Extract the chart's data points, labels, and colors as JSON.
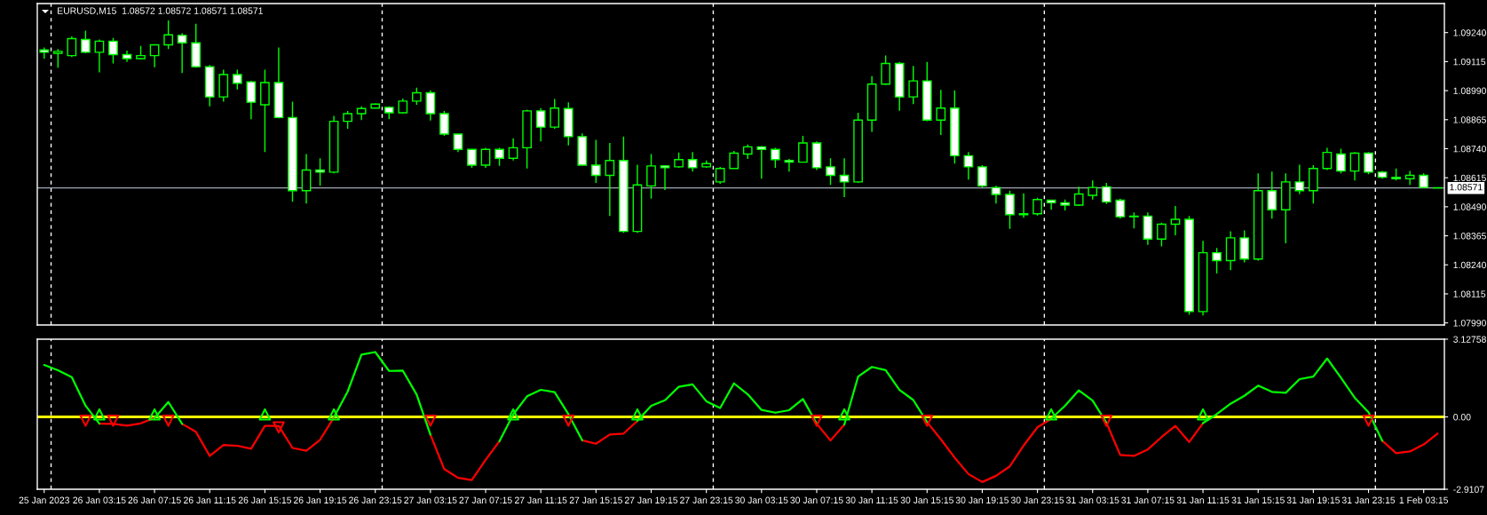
{
  "chart_data": [
    {
      "type": "candlestick",
      "title": "EURUSD,M15  1.08572 1.08572 1.08571 1.08571",
      "color": "#00ff00",
      "categories": [
        null,
        null,
        null,
        null,
        null,
        null,
        null,
        null,
        null,
        null,
        null,
        null,
        null,
        null,
        null,
        null,
        null,
        null,
        null,
        null,
        null,
        null,
        null,
        null,
        null,
        null,
        null,
        null,
        null,
        null,
        null,
        null,
        null,
        null,
        null,
        null,
        null,
        null,
        null,
        null,
        null,
        null,
        null,
        null,
        null,
        null,
        null,
        null,
        null,
        null,
        null,
        null,
        null,
        null,
        null,
        null,
        null,
        null,
        null,
        null,
        null,
        null,
        null,
        null,
        null,
        null,
        null,
        null,
        null,
        null,
        null,
        null,
        null,
        null,
        null,
        null,
        null,
        null,
        null,
        null,
        null,
        null,
        null,
        null,
        null,
        null,
        null,
        null,
        null,
        null,
        null,
        null,
        null,
        null,
        null,
        null,
        null,
        null,
        null,
        null,
        null,
        null
      ],
      "ohlc": [
        [
          1.09165,
          1.09176,
          1.09128,
          1.09155
        ],
        [
          1.09151,
          1.09169,
          1.09089,
          1.09159
        ],
        [
          1.09141,
          1.09224,
          1.09135,
          1.09214
        ],
        [
          1.0921,
          1.09248,
          1.09151,
          1.09155
        ],
        [
          1.09155,
          1.0921,
          1.09069,
          1.09203
        ],
        [
          1.09203,
          1.09217,
          1.09107,
          1.09145
        ],
        [
          1.09145,
          1.09162,
          1.09114,
          1.09128
        ],
        [
          1.09128,
          1.09182,
          1.09124,
          1.09141
        ],
        [
          1.09141,
          1.09189,
          1.09091,
          1.09187
        ],
        [
          1.09187,
          1.09292,
          1.09169,
          1.0923
        ],
        [
          1.09228,
          1.09237,
          1.09066,
          1.09196
        ],
        [
          1.09196,
          1.09278,
          1.09089,
          1.09093
        ],
        [
          1.09093,
          1.091,
          1.08922,
          1.08963
        ],
        [
          1.08963,
          1.0908,
          1.08943,
          1.09059
        ],
        [
          1.09059,
          1.0908,
          1.08995,
          1.09022
        ],
        [
          1.09028,
          1.09032,
          1.08867,
          1.0894
        ],
        [
          1.08929,
          1.0908,
          1.08726,
          1.09025
        ],
        [
          1.09025,
          1.09176,
          1.08871,
          1.08874
        ],
        [
          1.08874,
          1.08943,
          1.08511,
          1.08559
        ],
        [
          1.08559,
          1.08717,
          1.08504,
          1.08648
        ],
        [
          1.08648,
          1.08699,
          1.0858,
          1.08639
        ],
        [
          1.08639,
          1.08881,
          1.08634,
          1.08858
        ],
        [
          1.08858,
          1.08902,
          1.08826,
          1.08891
        ],
        [
          1.08891,
          1.08922,
          1.08863,
          1.08913
        ],
        [
          1.08915,
          1.08936,
          1.08913,
          1.08932
        ],
        [
          1.08918,
          1.08922,
          1.08867,
          1.08895
        ],
        [
          1.08895,
          1.08956,
          1.08891,
          1.08945
        ],
        [
          1.08945,
          1.09003,
          1.08929,
          1.08981
        ],
        [
          1.08981,
          1.08991,
          1.08861,
          1.08891
        ],
        [
          1.08891,
          1.08902,
          1.08795,
          1.08803
        ],
        [
          1.08803,
          1.08806,
          1.08726,
          1.08737
        ],
        [
          1.08737,
          1.0874,
          1.08658,
          1.08669
        ],
        [
          1.08669,
          1.08744,
          1.08658,
          1.08737
        ],
        [
          1.08737,
          1.08744,
          1.08666,
          1.08699
        ],
        [
          1.08699,
          1.08785,
          1.08689,
          1.08744
        ],
        [
          1.08744,
          1.08908,
          1.08655,
          1.08903
        ],
        [
          1.08903,
          1.08915,
          1.08771,
          1.08833
        ],
        [
          1.08833,
          1.08954,
          1.08826,
          1.08915
        ],
        [
          1.08913,
          1.0894,
          1.08754,
          1.08792
        ],
        [
          1.08792,
          1.08806,
          1.08666,
          1.08669
        ],
        [
          1.08669,
          1.08778,
          1.08593,
          1.08625
        ],
        [
          1.08625,
          1.08765,
          1.0845,
          1.08689
        ],
        [
          1.08689,
          1.08792,
          1.08378,
          1.08384
        ],
        [
          1.08384,
          1.08671,
          1.08378,
          1.08584
        ],
        [
          1.0858,
          1.08717,
          1.08525,
          1.08666
        ],
        [
          1.08666,
          1.08669,
          1.08562,
          1.08658
        ],
        [
          1.08662,
          1.08724,
          1.08658,
          1.08693
        ],
        [
          1.08693,
          1.08726,
          1.08641,
          1.08658
        ],
        [
          1.08662,
          1.08689,
          1.08658,
          1.08676
        ],
        [
          1.08597,
          1.08662,
          1.08589,
          1.08655
        ],
        [
          1.08655,
          1.0873,
          1.08652,
          1.08721
        ],
        [
          1.08717,
          1.08758,
          1.08696,
          1.08748
        ],
        [
          1.08748,
          1.08751,
          1.08611,
          1.08737
        ],
        [
          1.08737,
          1.08744,
          1.08658,
          1.08693
        ],
        [
          1.08689,
          1.08696,
          1.08641,
          1.08682
        ],
        [
          1.08682,
          1.08795,
          1.0868,
          1.08765
        ],
        [
          1.08765,
          1.08771,
          1.08648,
          1.08658
        ],
        [
          1.08662,
          1.08699,
          1.08584,
          1.08625
        ],
        [
          1.08625,
          1.08699,
          1.08532,
          1.08597
        ],
        [
          1.08597,
          1.08895,
          1.08593,
          1.08863
        ],
        [
          1.08863,
          1.09052,
          1.08813,
          1.09018
        ],
        [
          1.09018,
          1.09141,
          1.09014,
          1.09107
        ],
        [
          1.09107,
          1.09114,
          1.08903,
          1.08963
        ],
        [
          1.08963,
          1.09096,
          1.08932,
          1.09032
        ],
        [
          1.09032,
          1.09114,
          1.08858,
          1.08863
        ],
        [
          1.08863,
          1.08993,
          1.08799,
          1.08915
        ],
        [
          1.08915,
          1.08991,
          1.08676,
          1.0871
        ],
        [
          1.0871,
          1.08726,
          1.08607,
          1.08662
        ],
        [
          1.08662,
          1.08669,
          1.08573,
          1.0858
        ],
        [
          1.08573,
          1.0858,
          1.08504,
          1.08543
        ],
        [
          1.08543,
          1.08559,
          1.08395,
          1.08456
        ],
        [
          1.08456,
          1.08548,
          1.08443,
          1.0846
        ],
        [
          1.0846,
          1.08529,
          1.08452,
          1.08521
        ],
        [
          1.08518,
          1.08521,
          1.08477,
          1.08507
        ],
        [
          1.08507,
          1.08521,
          1.08474,
          1.08497
        ],
        [
          1.08497,
          1.08576,
          1.08493,
          1.08545
        ],
        [
          1.08539,
          1.08603,
          1.08521,
          1.08573
        ],
        [
          1.08576,
          1.08593,
          1.08502,
          1.08511
        ],
        [
          1.08518,
          1.08525,
          1.08439,
          1.08447
        ],
        [
          1.08447,
          1.08466,
          1.08397,
          1.0845
        ],
        [
          1.0845,
          1.08466,
          1.08326,
          1.08351
        ],
        [
          1.08351,
          1.08422,
          1.08319,
          1.08415
        ],
        [
          1.08415,
          1.08493,
          1.08367,
          1.08436
        ],
        [
          1.08436,
          1.0845,
          1.08025,
          1.08039
        ],
        [
          1.08039,
          1.08343,
          1.08022,
          1.08292
        ],
        [
          1.08292,
          1.08313,
          1.08203,
          1.08258
        ],
        [
          1.08258,
          1.08384,
          1.08217,
          1.08356
        ],
        [
          1.08356,
          1.08388,
          1.08251,
          1.08265
        ],
        [
          1.08265,
          1.08634,
          1.08258,
          1.08559
        ],
        [
          1.08559,
          1.08641,
          1.08439,
          1.08477
        ],
        [
          1.08477,
          1.08634,
          1.08333,
          1.08597
        ],
        [
          1.08597,
          1.08671,
          1.08545,
          1.08559
        ],
        [
          1.08559,
          1.08669,
          1.08504,
          1.08655
        ],
        [
          1.08655,
          1.08744,
          1.08648,
          1.08724
        ],
        [
          1.08717,
          1.0874,
          1.08634,
          1.08644
        ],
        [
          1.08644,
          1.08726,
          1.08603,
          1.08721
        ],
        [
          1.08721,
          1.08726,
          1.0863,
          1.08639
        ],
        [
          1.08639,
          1.08644,
          1.08611,
          1.08617
        ],
        [
          1.08617,
          1.08655,
          1.08603,
          1.08611
        ],
        [
          1.08611,
          1.08644,
          1.08584,
          1.08625
        ],
        [
          1.08625,
          1.08634,
          1.0857,
          1.08573
        ],
        [
          1.08572,
          1.08572,
          1.08571,
          1.08571
        ]
      ],
      "ylim": [
        1.07981,
        1.09365
      ],
      "yticks": [
        {
          "value": 1.0924,
          "label": "1.09240"
        },
        {
          "value": 1.09115,
          "label": "1.09115"
        },
        {
          "value": 1.0899,
          "label": "1.08990"
        },
        {
          "value": 1.08865,
          "label": "1.08865"
        },
        {
          "value": 1.0874,
          "label": "1.08740"
        },
        {
          "value": 1.08615,
          "label": "1.08615"
        },
        {
          "value": 1.0849,
          "label": "1.08490"
        },
        {
          "value": 1.08365,
          "label": "1.08365"
        },
        {
          "value": 1.0824,
          "label": "1.08240"
        },
        {
          "value": 1.08115,
          "label": "1.08115"
        },
        {
          "value": 1.0799,
          "label": "1.07990"
        }
      ],
      "tick_labels": "y",
      "ref_lines": [
        {
          "axis": "y",
          "value": 1.08571,
          "label": "1.08571",
          "color": "#a0a8b4"
        }
      ]
    },
    {
      "type": "line",
      "categories": [
        "25 Jan 2023",
        null,
        null,
        null,
        "26 Jan 03:15",
        null,
        null,
        null,
        "26 Jan 07:15",
        null,
        null,
        null,
        "26 Jan 11:15",
        null,
        null,
        null,
        "26 Jan 15:15",
        null,
        null,
        null,
        "26 Jan 19:15",
        null,
        null,
        null,
        "26 Jan 23:15",
        null,
        null,
        null,
        "27 Jan 03:15",
        null,
        null,
        null,
        "27 Jan 07:15",
        null,
        null,
        null,
        "27 Jan 11:15",
        null,
        null,
        null,
        "27 Jan 15:15",
        null,
        null,
        null,
        "27 Jan 19:15",
        null,
        null,
        null,
        "27 Jan 23:15",
        null,
        null,
        null,
        "30 Jan 03:15",
        null,
        null,
        null,
        "30 Jan 07:15",
        null,
        null,
        null,
        "30 Jan 11:15",
        null,
        null,
        null,
        "30 Jan 15:15",
        null,
        null,
        null,
        "30 Jan 19:15",
        null,
        null,
        null,
        "30 Jan 23:15",
        null,
        null,
        null,
        "31 Jan 03:15",
        null,
        null,
        null,
        "31 Jan 07:15",
        null,
        null,
        null,
        "31 Jan 11:15",
        null,
        null,
        null,
        "31 Jan 15:15",
        null,
        null,
        null,
        "31 Jan 19:15",
        null,
        null,
        null,
        "31 Jan 23:15",
        null,
        null,
        null,
        "1 Feb 03:15",
        null
      ],
      "series": [
        {
          "color": "#ff0000",
          "values": [
            null,
            null,
            null,
            null,
            -0.27,
            -0.28,
            -0.35,
            -0.26,
            -0.04,
            null,
            -0.28,
            -0.6,
            -1.57,
            -1.13,
            -1.16,
            -1.28,
            -0.36,
            -0.36,
            -1.25,
            -1.36,
            -0.92,
            -0.02,
            null,
            null,
            null,
            null,
            null,
            null,
            -0.72,
            -2.1,
            -2.45,
            -2.54,
            -1.73,
            -0.98,
            null,
            null,
            null,
            null,
            null,
            -0.94,
            -1.08,
            -0.71,
            -0.67,
            -0.16,
            null,
            null,
            null,
            null,
            null,
            null,
            null,
            null,
            null,
            null,
            null,
            null,
            -0.27,
            -0.95,
            -0.31,
            null,
            null,
            null,
            null,
            null,
            -0.21,
            -0.9,
            -1.64,
            -2.3,
            -2.62,
            -2.37,
            -1.99,
            -1.15,
            -0.42,
            -0.07,
            null,
            null,
            null,
            -0.23,
            -1.53,
            -1.57,
            -1.31,
            -0.81,
            -0.36,
            -1.01,
            -0.25,
            null,
            null,
            null,
            null,
            null,
            null,
            null,
            null,
            null,
            null,
            null,
            null,
            -0.96,
            -1.46,
            -1.39,
            -1.11,
            -0.67
          ]
        },
        {
          "color": "#00ff00",
          "values": [
            2.09,
            1.88,
            1.6,
            0.45,
            -0.27,
            null,
            null,
            null,
            -0.04,
            0.6,
            -0.28,
            null,
            null,
            null,
            null,
            null,
            null,
            null,
            null,
            null,
            null,
            -0.02,
            1.02,
            2.51,
            2.61,
            1.85,
            1.86,
            0.9,
            -0.72,
            null,
            null,
            null,
            null,
            -0.98,
            0.1,
            0.83,
            1.09,
            1.0,
            0.11,
            -0.94,
            null,
            null,
            null,
            -0.16,
            0.45,
            0.67,
            1.21,
            1.31,
            0.63,
            0.36,
            1.35,
            0.91,
            0.28,
            0.17,
            0.27,
            0.72,
            -0.27,
            null,
            -0.31,
            1.62,
            2.01,
            1.88,
            1.09,
            0.68,
            -0.21,
            null,
            null,
            null,
            null,
            null,
            null,
            null,
            null,
            -0.07,
            0.45,
            1.07,
            0.66,
            -0.23,
            null,
            null,
            null,
            null,
            null,
            null,
            -0.25,
            0.11,
            0.53,
            0.85,
            1.26,
            1.01,
            0.97,
            1.52,
            1.62,
            2.35,
            1.58,
            0.77,
            0.19,
            -0.96,
            null,
            null,
            null,
            null
          ]
        },
        {
          "type": "scatter",
          "color": "#00ff00",
          "marker": "triangle",
          "values": [
            null,
            null,
            null,
            null,
            0.1,
            null,
            null,
            null,
            0.1,
            null,
            null,
            null,
            null,
            null,
            null,
            null,
            0.1,
            null,
            null,
            null,
            null,
            0.1,
            null,
            null,
            null,
            null,
            null,
            null,
            null,
            null,
            null,
            null,
            null,
            null,
            0.1,
            null,
            null,
            null,
            null,
            null,
            null,
            null,
            null,
            0.1,
            null,
            null,
            null,
            null,
            null,
            null,
            null,
            null,
            null,
            null,
            null,
            null,
            null,
            null,
            0.1,
            null,
            null,
            null,
            null,
            null,
            null,
            null,
            null,
            null,
            null,
            null,
            null,
            null,
            null,
            0.1,
            null,
            null,
            null,
            null,
            null,
            null,
            null,
            null,
            null,
            null,
            0.1,
            null,
            null,
            null,
            null,
            null,
            null,
            null,
            null,
            null,
            null,
            null,
            null,
            null,
            null,
            null,
            null,
            null
          ]
        },
        {
          "type": "scatter",
          "color": "#ff0000",
          "marker": "triangle",
          "values": [
            null,
            null,
            null,
            -0.15,
            null,
            -0.15,
            null,
            null,
            null,
            -0.15,
            null,
            null,
            null,
            null,
            null,
            null,
            null,
            -0.42,
            null,
            null,
            null,
            null,
            null,
            null,
            null,
            null,
            null,
            null,
            -0.15,
            null,
            null,
            null,
            null,
            null,
            null,
            null,
            null,
            null,
            -0.15,
            null,
            null,
            null,
            null,
            null,
            null,
            null,
            null,
            null,
            null,
            null,
            null,
            null,
            null,
            null,
            null,
            null,
            -0.15,
            null,
            null,
            null,
            null,
            null,
            null,
            null,
            -0.15,
            null,
            null,
            null,
            null,
            null,
            null,
            null,
            null,
            null,
            null,
            null,
            null,
            -0.15,
            null,
            null,
            null,
            null,
            null,
            null,
            null,
            null,
            null,
            null,
            null,
            null,
            null,
            null,
            null,
            null,
            null,
            null,
            -0.15,
            null,
            null,
            null,
            null,
            null
          ]
        }
      ],
      "ylim": [
        -2.9107,
        3.12758
      ],
      "yticks": [
        3.12758,
        {
          "value": 0,
          "label": "0.00"
        },
        -2.9107
      ],
      "ref_lines": [
        {
          "axis": "y",
          "value": 0,
          "color": "#ffff00"
        }
      ]
    }
  ]
}
